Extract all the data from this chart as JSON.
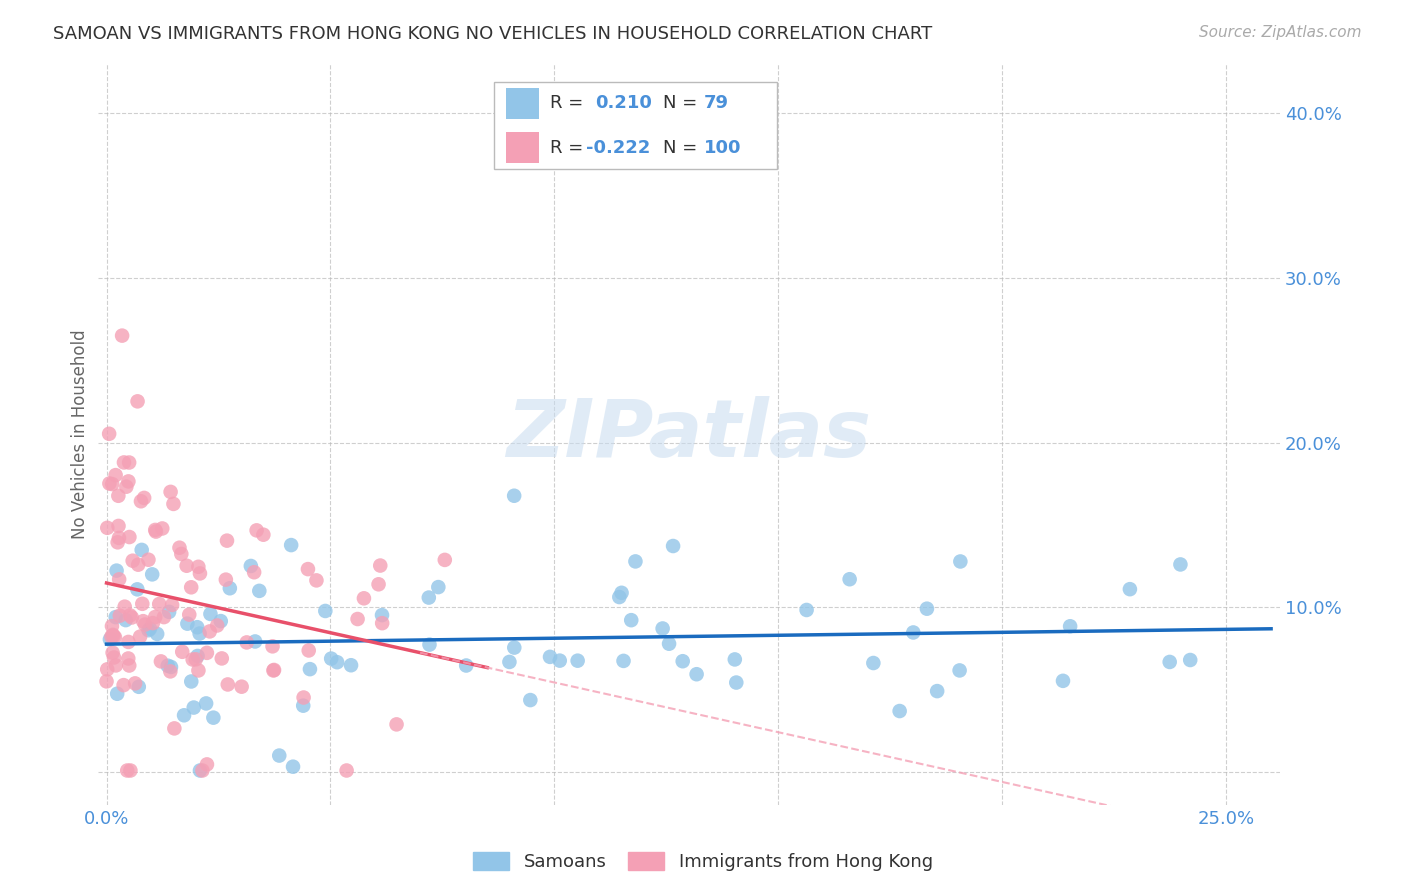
{
  "title": "SAMOAN VS IMMIGRANTS FROM HONG KONG NO VEHICLES IN HOUSEHOLD CORRELATION CHART",
  "source": "Source: ZipAtlas.com",
  "ylabel": "No Vehicles in Household",
  "x_min": -0.002,
  "x_max": 0.262,
  "y_min": -0.02,
  "y_max": 0.43,
  "watermark": "ZIPatlas",
  "legend_r_blue": "0.210",
  "legend_n_blue": "79",
  "legend_r_pink": "-0.222",
  "legend_n_pink": "100",
  "legend_label_blue": "Samoans",
  "legend_label_pink": "Immigrants from Hong Kong",
  "color_blue": "#92C5E8",
  "color_pink": "#F4A0B5",
  "line_color_blue": "#1A6BBF",
  "line_color_pink": "#E8506A",
  "line_color_pink_dashed": "#F4A0B5",
  "background_color": "#FFFFFF",
  "grid_color": "#BBBBBB",
  "title_color": "#333333",
  "source_color": "#AAAAAA",
  "axis_label_color": "#4A90D9",
  "N_blue": 79,
  "N_pink": 100,
  "R_blue": 0.21,
  "R_pink": -0.222,
  "seed_blue": 7,
  "seed_pink": 13
}
